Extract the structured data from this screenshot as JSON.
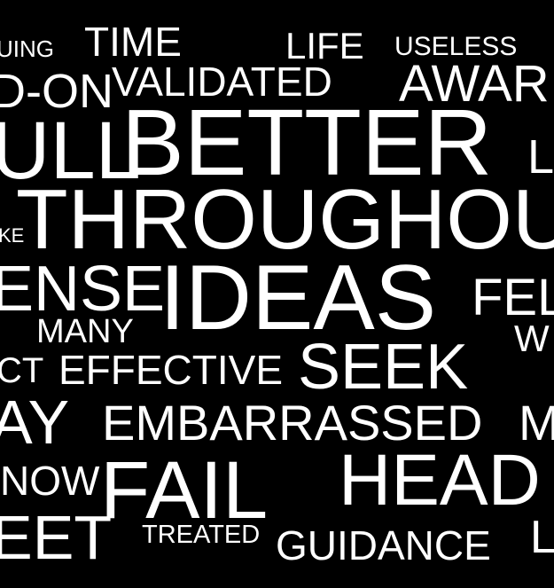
{
  "colors": {
    "background": "#000000",
    "text": "#ffffff"
  },
  "words": {
    "uing": "UING",
    "time": "TIME",
    "life": "LIFE",
    "useless": "USELESS",
    "don": "D-ON",
    "validated": "VALIDATED",
    "awar": "AWAR",
    "ull": "ULL",
    "better": "BETTER",
    "l1": "L",
    "throughou": "THROUGHOU",
    "ke": "KE",
    "ense": "ENSE",
    "ideas": "IDEAS",
    "fel": "FEL",
    "many": "MANY",
    "w": "W",
    "ct": "CT",
    "effective": "EFFECTIVE",
    "seek": "SEEK",
    "ay": "AY",
    "embarrassed": "EMBARRASSED",
    "m": "M",
    "now": "NOW",
    "fail": "FAIL",
    "head": "HEAD",
    "eet": "EET",
    "treated": "TREATED",
    "guidance": "GUIDANCE",
    "l2": "L"
  }
}
